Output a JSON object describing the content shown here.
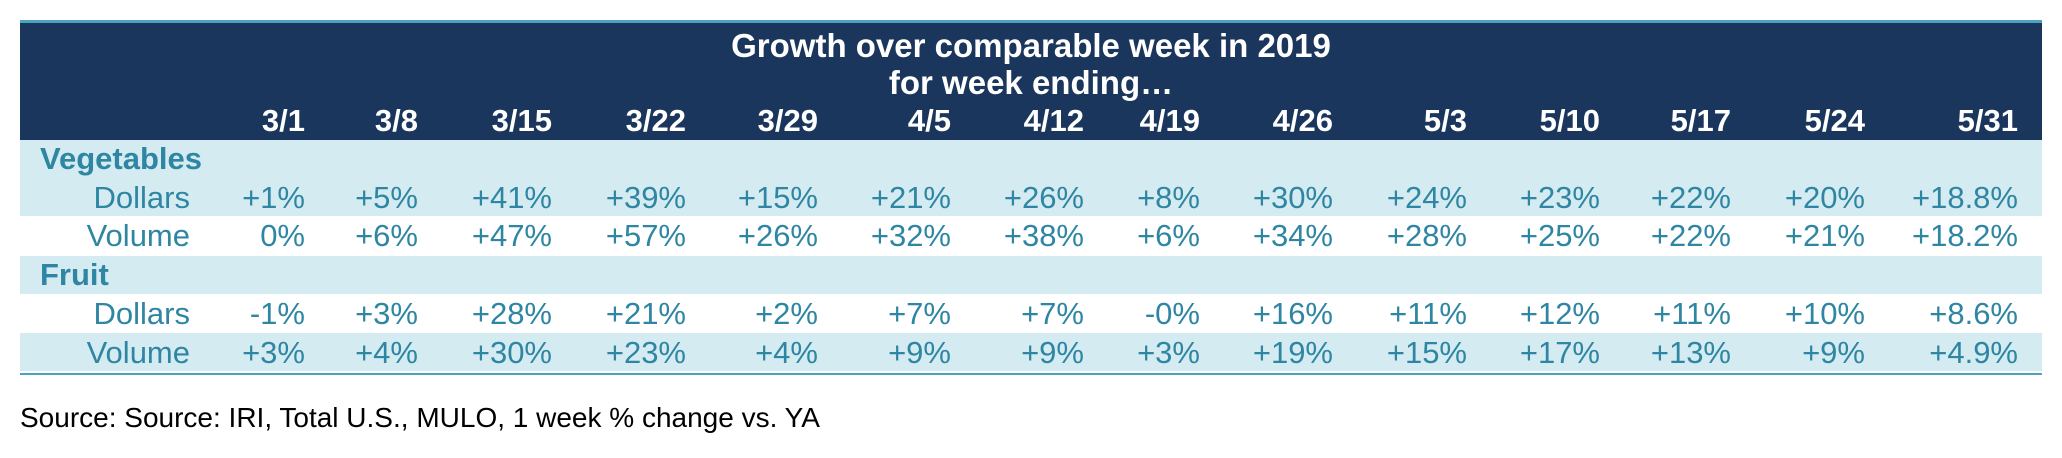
{
  "chart_data": {
    "type": "table",
    "title": "Growth over comparable week in 2019",
    "subtitle": "for week ending…",
    "columns": [
      "3/1",
      "3/8",
      "3/15",
      "3/22",
      "3/29",
      "4/5",
      "4/12",
      "4/19",
      "4/26",
      "5/3",
      "5/10",
      "5/17",
      "5/24",
      "5/31"
    ],
    "groups": [
      {
        "name": "Vegetables",
        "rows": [
          {
            "label": "Dollars",
            "values": [
              "+1%",
              "+5%",
              "+41%",
              "+39%",
              "+15%",
              "+21%",
              "+26%",
              "+8%",
              "+30%",
              "+24%",
              "+23%",
              "+22%",
              "+20%",
              "+18.8%"
            ]
          },
          {
            "label": "Volume",
            "values": [
              "0%",
              "+6%",
              "+47%",
              "+57%",
              "+26%",
              "+32%",
              "+38%",
              "+6%",
              "+34%",
              "+28%",
              "+25%",
              "+22%",
              "+21%",
              "+18.2%"
            ]
          }
        ]
      },
      {
        "name": "Fruit",
        "rows": [
          {
            "label": "Dollars",
            "values": [
              "-1%",
              "+3%",
              "+28%",
              "+21%",
              "+2%",
              "+7%",
              "+7%",
              "-0%",
              "+16%",
              "+11%",
              "+12%",
              "+11%",
              "+10%",
              "+8.6%"
            ]
          },
          {
            "label": "Volume",
            "values": [
              "+3%",
              "+4%",
              "+30%",
              "+23%",
              "+4%",
              "+9%",
              "+9%",
              "+3%",
              "+19%",
              "+15%",
              "+17%",
              "+13%",
              "+9%",
              "+4.9%"
            ]
          }
        ]
      }
    ],
    "source": "Source: Source: IRI, Total U.S., MULO, 1 week % change vs. YA"
  },
  "colors": {
    "header_bg": "#1b365d",
    "header_text": "#ffffff",
    "accent_text": "#2e86a3",
    "band_shade": "#d5ebf2",
    "rule": "#4aa3bf"
  }
}
